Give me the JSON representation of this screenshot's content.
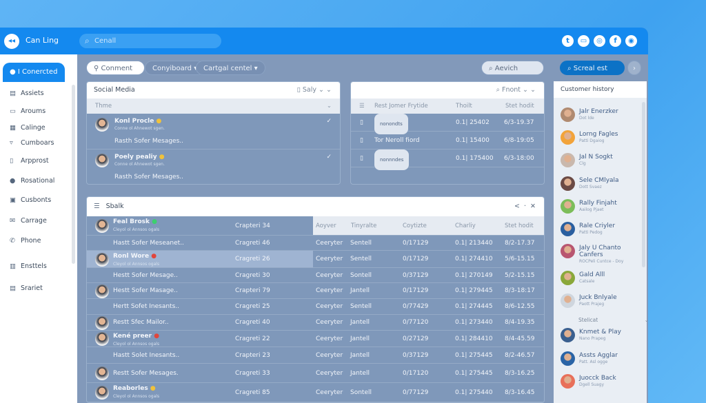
{
  "app": {
    "title": "Can Ling",
    "logo_glyph": "◂◂",
    "search_placeholder": "Cenall"
  },
  "header_icons": [
    "twitter-icon",
    "card-icon",
    "whatsapp-icon",
    "facebook-icon",
    "instagram-icon"
  ],
  "header_icon_glyphs": [
    "t",
    "▭",
    "◎",
    "f",
    "◉"
  ],
  "sidebar": {
    "active": "I Conercted",
    "items": [
      {
        "label": "Assiets",
        "glyph": "▤"
      },
      {
        "label": "Aroums",
        "glyph": "▭"
      },
      {
        "label": "Calinge",
        "glyph": "▦"
      },
      {
        "label": "Cumboars",
        "glyph": "▿"
      },
      {
        "label": "Arpprost",
        "glyph": "▯"
      },
      {
        "label": "Rosational",
        "glyph": "●"
      },
      {
        "label": "Cusbonts",
        "glyph": "▣"
      },
      {
        "label": "Carrage",
        "glyph": "✉"
      },
      {
        "label": "Phone",
        "glyph": "✆"
      },
      {
        "label": "Ensttels",
        "glyph": "▥"
      },
      {
        "label": "Srariet",
        "glyph": "▤"
      }
    ]
  },
  "filters": {
    "comment": "Conment",
    "dropdown1": "Conyiboard",
    "dropdown2": "Cartgal centel",
    "search": "Aevich",
    "action": "Screal est"
  },
  "social_media": {
    "title": "Social Media",
    "sort": "Saly",
    "column": "Thme",
    "rows": [
      {
        "name": "Konl Procle",
        "sub": "Conne ol Ahnewot sgen.",
        "msg": "Rasth Sofer Mesages.."
      },
      {
        "name": "Poely pealiy",
        "sub": "Conne ol Ahnewot sgen.",
        "msg": "Rasth Sofer Mesages.."
      }
    ]
  },
  "files": {
    "filter": "Fnont",
    "columns": [
      "Rest Jomer Frytide",
      "Thoilt",
      "Stet hodit"
    ],
    "rows": [
      {
        "label": "nonondts",
        "tag": true,
        "value": "0.1| 25402",
        "date": "6/3-19.37"
      },
      {
        "label": "Tor Neroll fiord",
        "tag": false,
        "value": "0.1| 15400",
        "date": "6/8-19:05"
      },
      {
        "label": "nonnndes",
        "tag": true,
        "value": "0.1| 175400",
        "date": "6/3-18:00"
      }
    ]
  },
  "stalk": {
    "title": "Sbalk",
    "columns": [
      "Aoyver",
      "Tinyralte",
      "Coytizte",
      "Charliy",
      "Stet hodit"
    ],
    "rows": [
      {
        "name": "Feal Brosk",
        "sub": "Cleyol ol Annsos ogals",
        "ch": "Crapteri 34",
        "avatar": true,
        "status": "#3ccf6e"
      },
      {
        "name": "Hastt Sofer Meseanet..",
        "ch": "Cragreti 46",
        "c1": "Ceeryter",
        "c2": "Sentell",
        "c3": "0/17129",
        "c4": "0.1| 213440",
        "c5": "8/2-17.37"
      },
      {
        "name": "Ronl Wore",
        "sub": "Cleyol ol Annsos ogals",
        "ch": "Cragreti 26",
        "avatar": true,
        "status": "#e0463c",
        "c1": "Ceeryter",
        "c2": "Sentell",
        "c3": "0/17129",
        "c4": "0.1| 274410",
        "c5": "5/6-15.15"
      },
      {
        "name": "Hestt Sofer Mesage..",
        "ch": "Cragreti 30",
        "c1": "Ceeryter",
        "c2": "Sontell",
        "c3": "0/37129",
        "c4": "0.1| 270149",
        "c5": "5/2-15.15"
      },
      {
        "name": "Hestt Sofer Masage..",
        "ch": "Crapteri 79",
        "avatar": true,
        "c1": "Ceeryter",
        "c2": "Jantell",
        "c3": "0/17129",
        "c4": "0.1| 279445",
        "c5": "8/3-18:17"
      },
      {
        "name": "Hertt Sofet Inesants..",
        "ch": "Cragreti 25",
        "c1": "Ceeryter",
        "c2": "Sentell",
        "c3": "0/77429",
        "c4": "0.1| 274445",
        "c5": "8/6-12.55"
      },
      {
        "name": "Restt Sfec Mailor..",
        "ch": "Cragreti 40",
        "avatar": true,
        "c1": "Ceeryter",
        "c2": "Jantell",
        "c3": "0/77120",
        "c4": "0.1| 273440",
        "c5": "8/4-19.35"
      },
      {
        "name": "Kené preer",
        "sub": "Cleyol ol Annsos ogals",
        "ch": "Cragreti 22",
        "avatar": true,
        "status": "#e0463c",
        "c1": "Ceeryter",
        "c2": "Jantell",
        "c3": "0/27129",
        "c4": "0.1| 284410",
        "c5": "8/4-45.59"
      },
      {
        "name": "Hastt Solet Inesants..",
        "ch": "Crapteri 23",
        "c1": "Ceeryter",
        "c2": "Jantell",
        "c3": "0/37129",
        "c4": "0.1| 275445",
        "c5": "8/2-46.57"
      },
      {
        "name": "Restt Sofer Mesages.",
        "ch": "Cragreti 33",
        "avatar": true,
        "c1": "Ceeryter",
        "c2": "Jantell",
        "c3": "0/17120",
        "c4": "0.1| 275445",
        "c5": "8/3-16.25"
      },
      {
        "name": "Reaborles",
        "sub": "Cleyol ol Annsos ogals",
        "ch": "Cragreti 85",
        "avatar": true,
        "status": "#f0c23c",
        "c1": "Ceeryter",
        "c2": "Sontell",
        "c3": "0/77129",
        "c4": "0.1| 275440",
        "c5": "8/3-16.45"
      }
    ]
  },
  "history": {
    "title": "Customer history",
    "section": "Stelicat",
    "items": [
      {
        "name": "Jalr Enerzker",
        "sub": "Dot lde",
        "color": "#b08a70"
      },
      {
        "name": "Lorng Fagles",
        "sub": "Patti Dgaiog",
        "color": "#f2a33a"
      },
      {
        "name": "Jal N Sogkt",
        "sub": "Clg",
        "color": "#c9b8ad"
      },
      {
        "name": "Sele CMlyala",
        "sub": "Dott Svaez",
        "color": "#6b4a44"
      },
      {
        "name": "Rally Finjaht",
        "sub": "Aailog Pjaet",
        "color": "#7cbd5a"
      },
      {
        "name": "Rale Criyler",
        "sub": "Patti Pedog",
        "color": "#2a5fa0"
      },
      {
        "name": "Jaly U Chanto Canfers",
        "sub": "ROCPeli Cuntce - Doy",
        "color": "#b85670"
      },
      {
        "name": "Gald Alll",
        "sub": "Catsale",
        "color": "#8aa83a"
      },
      {
        "name": "Juck Bnlyale",
        "sub": "Paott Prajeg",
        "color": "#cfd6de"
      },
      {
        "name": "Knmet & Play",
        "sub": "Nano Prapeg",
        "color": "#3a5f8f"
      },
      {
        "name": "Assts Agglar",
        "sub": "Patt. Asl ogge",
        "color": "#2a64a6"
      },
      {
        "name": "Juocck Back",
        "sub": "Dgell Suagy",
        "color": "#e8705a"
      }
    ]
  }
}
